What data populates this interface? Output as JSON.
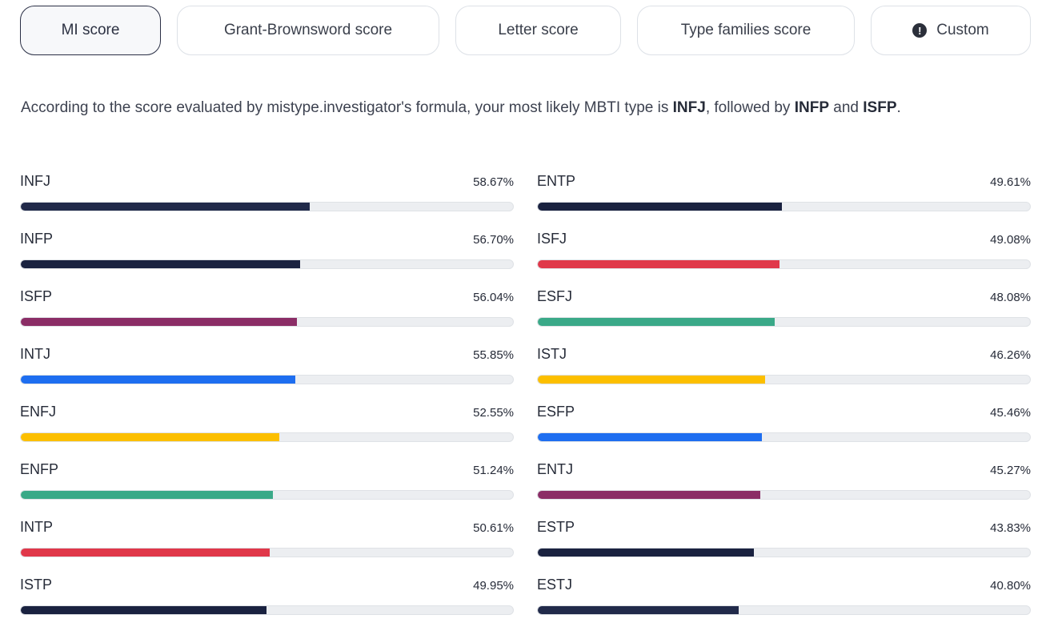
{
  "tabs": [
    {
      "label": "MI score",
      "active": true
    },
    {
      "label": "Grant-Brownsword score",
      "active": false
    },
    {
      "label": "Letter score",
      "active": false
    },
    {
      "label": "Type families score",
      "active": false
    },
    {
      "label": "Custom",
      "active": false,
      "icon": "exclamation-circle-icon"
    }
  ],
  "summary": {
    "before": "According to the score evaluated by mistype.investigator's formula, your most likely MBTI type is ",
    "type1": "INFJ",
    "between": ", followed by ",
    "type2": "INFP",
    "and": " and ",
    "type3": "ISFP",
    "end": "."
  },
  "colors": {
    "navy": "#212a4a",
    "red": "#e0384a",
    "purple": "#8b2d66",
    "blue": "#1e6ef0",
    "yellow": "#fcbf00",
    "green": "#3aa988"
  },
  "left_scores": [
    {
      "type": "INFJ",
      "percent": "58.67%",
      "value": 58.67,
      "color": "#212a4a"
    },
    {
      "type": "INFP",
      "percent": "56.70%",
      "value": 56.7,
      "color": "#1a2240"
    },
    {
      "type": "ISFP",
      "percent": "56.04%",
      "value": 56.04,
      "color": "#8b2d66"
    },
    {
      "type": "INTJ",
      "percent": "55.85%",
      "value": 55.85,
      "color": "#1e6ef0"
    },
    {
      "type": "ENFJ",
      "percent": "52.55%",
      "value": 52.55,
      "color": "#fcbf00"
    },
    {
      "type": "ENFP",
      "percent": "51.24%",
      "value": 51.24,
      "color": "#3aa988"
    },
    {
      "type": "INTP",
      "percent": "50.61%",
      "value": 50.61,
      "color": "#e0384a"
    },
    {
      "type": "ISTP",
      "percent": "49.95%",
      "value": 49.95,
      "color": "#1a2240"
    }
  ],
  "right_scores": [
    {
      "type": "ENTP",
      "percent": "49.61%",
      "value": 49.61,
      "color": "#1a2240"
    },
    {
      "type": "ISFJ",
      "percent": "49.08%",
      "value": 49.08,
      "color": "#e0384a"
    },
    {
      "type": "ESFJ",
      "percent": "48.08%",
      "value": 48.08,
      "color": "#3aa988"
    },
    {
      "type": "ISTJ",
      "percent": "46.26%",
      "value": 46.26,
      "color": "#fcbf00"
    },
    {
      "type": "ESFP",
      "percent": "45.46%",
      "value": 45.46,
      "color": "#1e6ef0"
    },
    {
      "type": "ENTJ",
      "percent": "45.27%",
      "value": 45.27,
      "color": "#8b2d66"
    },
    {
      "type": "ESTP",
      "percent": "43.83%",
      "value": 43.83,
      "color": "#1a2240"
    },
    {
      "type": "ESTJ",
      "percent": "40.80%",
      "value": 40.8,
      "color": "#212a4a"
    }
  ]
}
